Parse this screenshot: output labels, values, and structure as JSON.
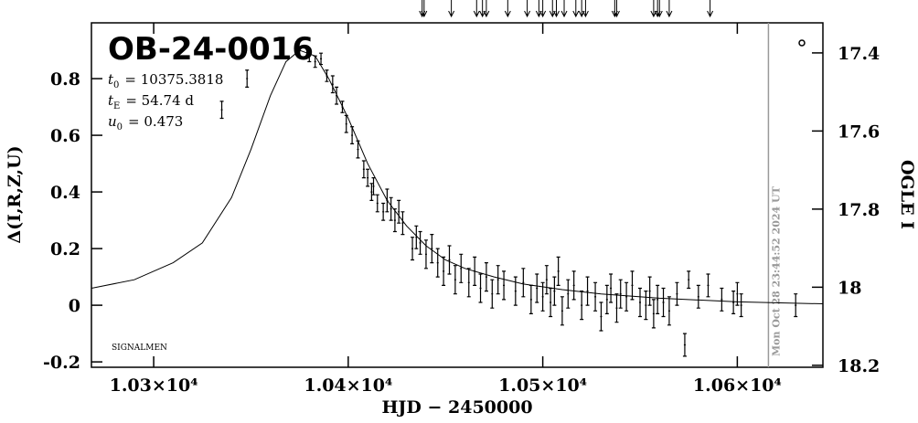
{
  "chart_data": {
    "type": "scatter",
    "title": "OB-24-0016",
    "params": [
      {
        "symbol": "t",
        "sub": "0",
        "text": "= 10375.3818"
      },
      {
        "symbol": "t",
        "sub": "E",
        "text": "= 54.74 d"
      },
      {
        "symbol": "u",
        "sub": "0",
        "text": "= 0.473"
      }
    ],
    "x_label": "HJD − 2450000",
    "y_label": "Δ(I,R,Z,U)",
    "y2_label": "OGLE I",
    "footnote": "SIGNALMEN",
    "date_line": {
      "x": 10616,
      "label": "Mon Oct 28 23:44:52 2024 UT",
      "color": "#999999"
    },
    "arrows_x": [
      10438,
      10439,
      10453,
      10466,
      10469,
      10471,
      10482,
      10492,
      10498,
      10500,
      10505,
      10507,
      10511,
      10517,
      10520,
      10522,
      10537,
      10538,
      10557,
      10559,
      10560,
      10565,
      10586
    ],
    "xlim": [
      10268,
      10644
    ],
    "xticks": [
      {
        "value": 10300,
        "label": "1.03×10⁴"
      },
      {
        "value": 10400,
        "label": "1.04×10⁴"
      },
      {
        "value": 10500,
        "label": "1.05×10⁴"
      },
      {
        "value": 10600,
        "label": "1.06×10⁴"
      }
    ],
    "ylim": [
      -0.219,
      0.997
    ],
    "yticks": [
      -0.2,
      0,
      0.2,
      0.4,
      0.6,
      0.8
    ],
    "y2lim": [
      17.323,
      18.205
    ],
    "y2ticks": [
      17.4,
      17.6,
      17.8,
      18,
      18.2
    ],
    "series": [
      {
        "type": "errorbar",
        "color": "#000000",
        "x": [
          10335,
          10348,
          10380,
          10383,
          10386,
          10389,
          10392,
          10394,
          10397,
          10399,
          10402,
          10405,
          10408,
          10410,
          10412,
          10413,
          10415,
          10418,
          10420,
          10422,
          10424,
          10426,
          10428,
          10433,
          10435,
          10437,
          10440,
          10443,
          10446,
          10449,
          10452,
          10455,
          10458,
          10462,
          10465,
          10468,
          10471,
          10474,
          10477,
          10480,
          10486,
          10490,
          10494,
          10497,
          10500,
          10502,
          10504,
          10506,
          10508,
          10510,
          10513,
          10516,
          10520,
          10523,
          10527,
          10530,
          10533,
          10535,
          10538,
          10540,
          10543,
          10546,
          10550,
          10553,
          10555,
          10557,
          10559,
          10562,
          10565,
          10569,
          10573,
          10575,
          10580,
          10585,
          10592,
          10598,
          10600,
          10602,
          10630
        ],
        "values": [
          0.69,
          0.8,
          0.88,
          0.86,
          0.87,
          0.81,
          0.78,
          0.74,
          0.7,
          0.64,
          0.6,
          0.55,
          0.48,
          0.45,
          0.4,
          0.42,
          0.36,
          0.33,
          0.37,
          0.34,
          0.3,
          0.33,
          0.29,
          0.2,
          0.24,
          0.22,
          0.18,
          0.2,
          0.15,
          0.12,
          0.16,
          0.09,
          0.13,
          0.08,
          0.12,
          0.06,
          0.1,
          0.04,
          0.09,
          0.07,
          0.05,
          0.08,
          0.02,
          0.06,
          0.03,
          0.09,
          0.01,
          0.05,
          0.12,
          -0.02,
          0.04,
          0.07,
          0,
          0.05,
          0.03,
          -0.04,
          0.02,
          0.06,
          -0.01,
          0.04,
          0.03,
          0.07,
          0.01,
          0,
          0.05,
          -0.03,
          0.02,
          0.01,
          -0.02,
          0.04,
          -0.14,
          0.09,
          0.03,
          0.07,
          0.02,
          0.01,
          0.04,
          0,
          0
        ],
        "errors": [
          0.03,
          0.03,
          0.02,
          0.02,
          0.02,
          0.02,
          0.03,
          0.03,
          0.02,
          0.03,
          0.03,
          0.03,
          0.03,
          0.03,
          0.03,
          0.03,
          0.03,
          0.03,
          0.04,
          0.04,
          0.04,
          0.04,
          0.04,
          0.04,
          0.04,
          0.04,
          0.05,
          0.05,
          0.05,
          0.05,
          0.05,
          0.05,
          0.05,
          0.05,
          0.05,
          0.05,
          0.05,
          0.05,
          0.05,
          0.05,
          0.05,
          0.05,
          0.05,
          0.05,
          0.05,
          0.05,
          0.05,
          0.05,
          0.05,
          0.05,
          0.05,
          0.05,
          0.05,
          0.05,
          0.05,
          0.05,
          0.05,
          0.05,
          0.05,
          0.05,
          0.05,
          0.05,
          0.05,
          0.05,
          0.05,
          0.05,
          0.05,
          0.05,
          0.05,
          0.04,
          0.04,
          0.03,
          0.04,
          0.04,
          0.04,
          0.04,
          0.04,
          0.04,
          0.04
        ]
      },
      {
        "type": "line",
        "color": "#000000",
        "x": [
          10268,
          10290,
          10310,
          10325,
          10340,
          10350,
          10360,
          10368,
          10375,
          10383,
          10390,
          10400,
          10410,
          10420,
          10430,
          10440,
          10450,
          10460,
          10475,
          10490,
          10510,
          10530,
          10560,
          10600,
          10644
        ],
        "values": [
          0.06,
          0.09,
          0.15,
          0.22,
          0.38,
          0.55,
          0.74,
          0.86,
          0.9,
          0.88,
          0.8,
          0.66,
          0.5,
          0.37,
          0.28,
          0.21,
          0.16,
          0.13,
          0.1,
          0.075,
          0.055,
          0.04,
          0.025,
          0.012,
          0.005
        ]
      }
    ]
  }
}
